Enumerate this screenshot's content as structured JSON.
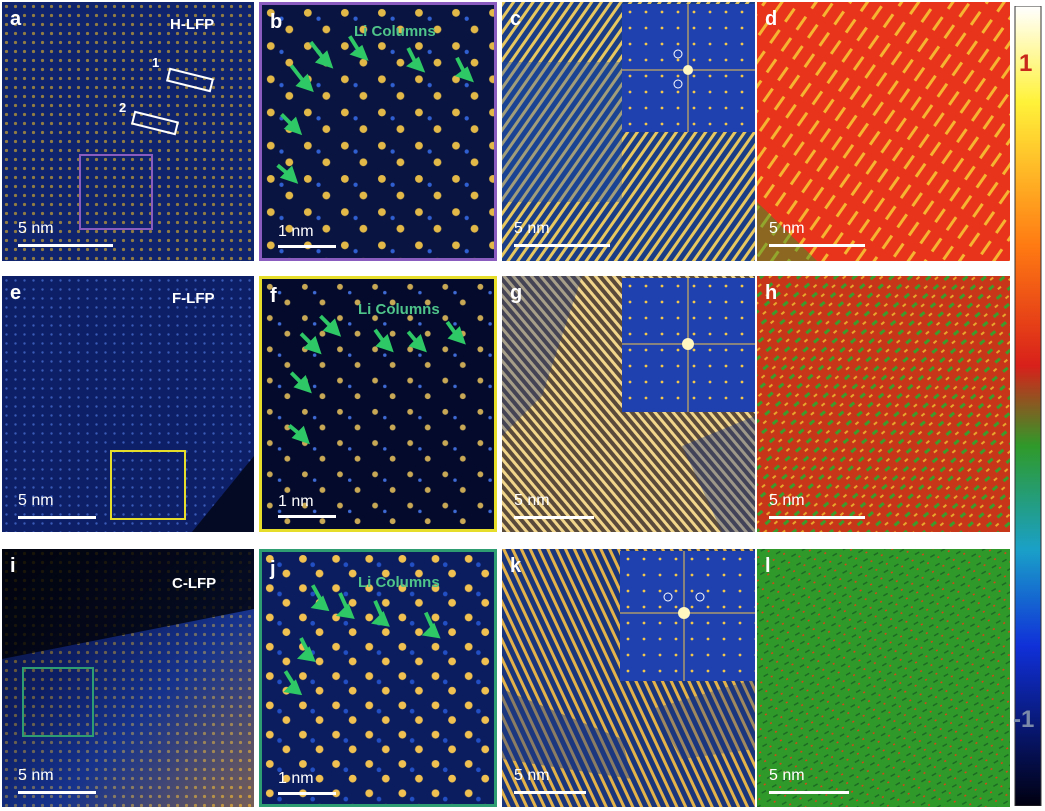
{
  "rows": [
    {
      "labels": {
        "a": "a",
        "b": "b",
        "c": "c",
        "d": "d"
      },
      "sample": "H-LFP",
      "li_columns": "Li Columns",
      "box_numbers": [
        "1",
        "2"
      ],
      "scale_a": "5 nm",
      "scale_b": "1 nm",
      "scale_c": "5 nm",
      "scale_d": "5 nm",
      "map_color": "#e8341a",
      "frame_color": "#8a5cc0"
    },
    {
      "labels": {
        "a": "e",
        "b": "f",
        "c": "g",
        "d": "h"
      },
      "sample": "F-LFP",
      "li_columns": "Li Columns",
      "scale_a": "5 nm",
      "scale_b": "1 nm",
      "scale_c": "5 nm",
      "scale_d": "5 nm",
      "map_color": "#c8361a",
      "frame_color": "#e6dc2a"
    },
    {
      "labels": {
        "a": "i",
        "b": "j",
        "c": "k",
        "d": "l"
      },
      "sample": "C-LFP",
      "li_columns": "Li Columns",
      "scale_a": "5 nm",
      "scale_b": "1 nm",
      "scale_c": "5 nm",
      "scale_d": "5 nm",
      "map_color": "#2f9a2a",
      "frame_color": "#2e9e72"
    }
  ],
  "colorbar": {
    "max_label": "1",
    "min_label": "-1"
  },
  "icons": {
    "arrow": "green-arrow-icon"
  }
}
